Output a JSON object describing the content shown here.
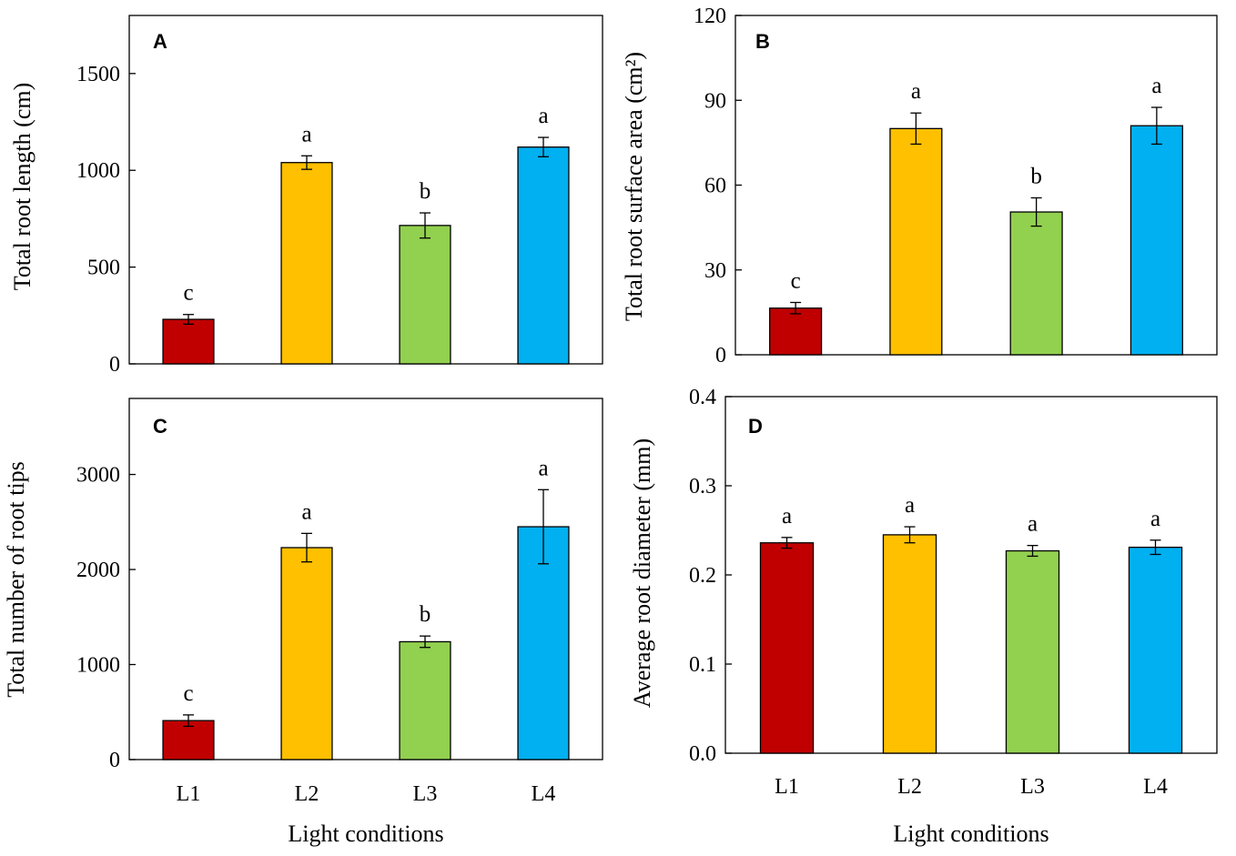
{
  "colors": {
    "L1": "#c00000",
    "L2": "#ffc000",
    "L3": "#92d050",
    "L4": "#00b0f0",
    "axis": "#000000"
  },
  "shared": {
    "categories": [
      "L1",
      "L2",
      "L3",
      "L4"
    ],
    "xlabel": "Light conditions"
  },
  "chart_data": [
    {
      "id": "A",
      "panel_label": "A",
      "type": "bar",
      "categories": [
        "L1",
        "L2",
        "L3",
        "L4"
      ],
      "values": [
        230,
        1040,
        715,
        1120
      ],
      "errors": [
        25,
        35,
        65,
        50
      ],
      "significance": [
        "c",
        "a",
        "b",
        "a"
      ],
      "ylabel": "Total root length (cm)",
      "xlabel": "",
      "ylim": [
        0,
        1800
      ],
      "yticks": [
        0,
        500,
        1000,
        1500
      ],
      "ytick_labels": [
        "0",
        "500",
        "1000",
        "1500"
      ],
      "xtick_labels": [],
      "legend": "none"
    },
    {
      "id": "B",
      "panel_label": "B",
      "type": "bar",
      "categories": [
        "L1",
        "L2",
        "L3",
        "L4"
      ],
      "values": [
        16.5,
        80,
        50.5,
        81
      ],
      "errors": [
        2,
        5.5,
        5,
        6.5
      ],
      "significance": [
        "c",
        "a",
        "b",
        "a"
      ],
      "ylabel": "Total root surface area (cm²)",
      "xlabel": "",
      "ylim": [
        0,
        120
      ],
      "yticks": [
        0,
        30,
        60,
        90,
        120
      ],
      "ytick_labels": [
        "0",
        "30",
        "60",
        "90",
        "120"
      ],
      "xtick_labels": [],
      "legend": "none"
    },
    {
      "id": "C",
      "panel_label": "C",
      "type": "bar",
      "categories": [
        "L1",
        "L2",
        "L3",
        "L4"
      ],
      "values": [
        410,
        2230,
        1240,
        2450
      ],
      "errors": [
        60,
        150,
        60,
        390
      ],
      "significance": [
        "c",
        "a",
        "b",
        "a"
      ],
      "ylabel": "Total number of root tips",
      "xlabel": "Light conditions",
      "ylim": [
        0,
        3800
      ],
      "yticks": [
        0,
        1000,
        2000,
        3000
      ],
      "ytick_labels": [
        "0",
        "1000",
        "2000",
        "3000"
      ],
      "xtick_labels": [
        "L1",
        "L2",
        "L3",
        "L4"
      ],
      "legend": "none"
    },
    {
      "id": "D",
      "panel_label": "D",
      "type": "bar",
      "categories": [
        "L1",
        "L2",
        "L3",
        "L4"
      ],
      "values": [
        0.236,
        0.245,
        0.227,
        0.231
      ],
      "errors": [
        0.006,
        0.009,
        0.006,
        0.008
      ],
      "significance": [
        "a",
        "a",
        "a",
        "a"
      ],
      "ylabel": "Average  root diameter (mm)",
      "xlabel": "Light conditions",
      "ylim": [
        0,
        0.4
      ],
      "yticks": [
        0,
        0.1,
        0.2,
        0.3,
        0.4
      ],
      "ytick_labels": [
        "0.0",
        "0.1",
        "0.2",
        "0.3",
        "0.4"
      ],
      "xtick_labels": [
        "L1",
        "L2",
        "L3",
        "L4"
      ],
      "legend": "none"
    }
  ]
}
